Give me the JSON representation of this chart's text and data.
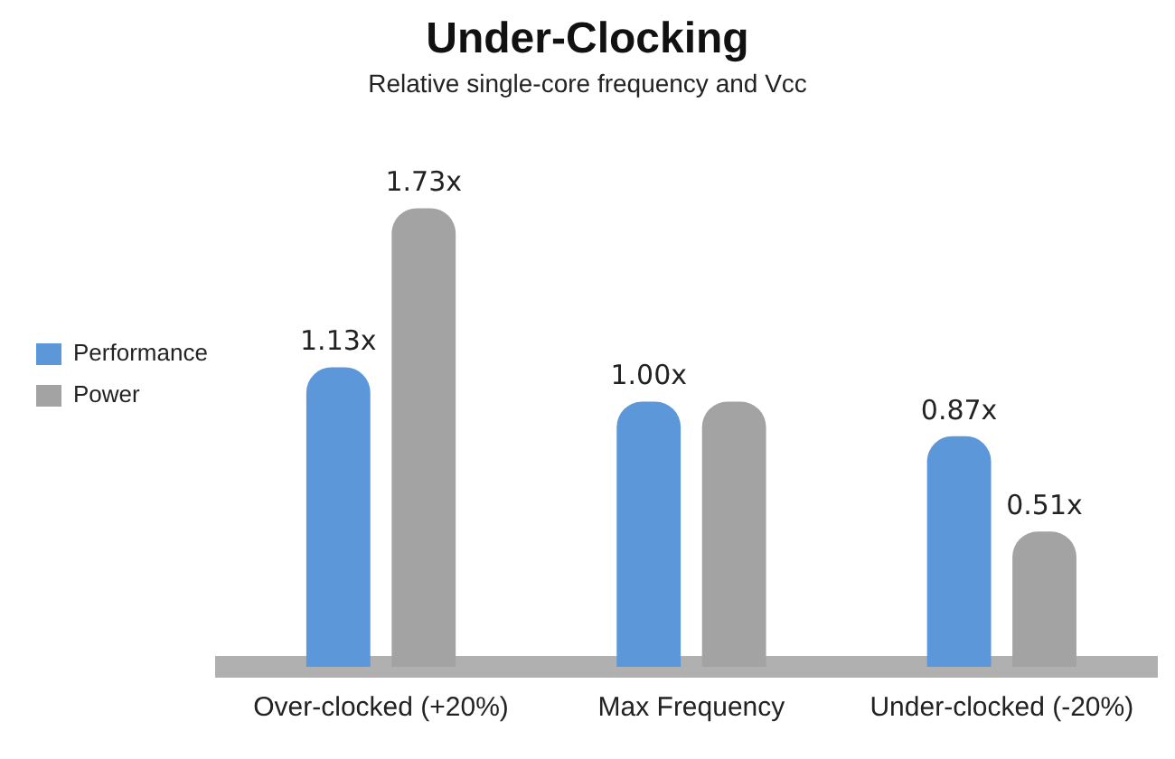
{
  "chart_data": {
    "type": "bar",
    "title": "Under-Clocking",
    "subtitle": "Relative single-core frequency and Vcc",
    "categories": [
      "Over-clocked (+20%)",
      "Max Frequency",
      "Under-clocked (-20%)"
    ],
    "series": [
      {
        "name": "Performance",
        "color": "#5b97d9",
        "values": [
          1.13,
          1.0,
          0.87
        ],
        "value_labels": [
          "1.13x",
          "1.00x",
          "0.87x"
        ]
      },
      {
        "name": "Power",
        "color": "#a3a3a3",
        "values": [
          1.73,
          1.0,
          0.51
        ],
        "value_labels": [
          "1.73x",
          null,
          "0.51x"
        ]
      }
    ],
    "legend": "left",
    "grid": false
  }
}
